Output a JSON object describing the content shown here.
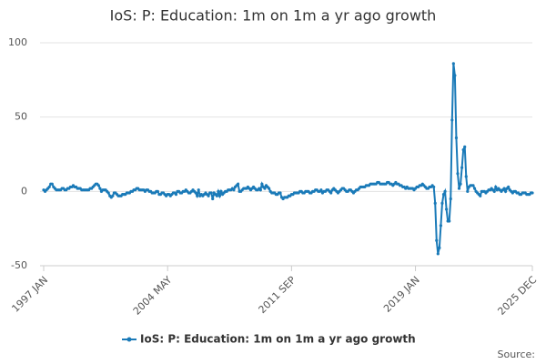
{
  "chart_data": {
    "type": "line",
    "title": "IoS: P: Education: 1m on 1m a yr ago growth",
    "source": "Source:",
    "categories": [
      "1997 JAN",
      null,
      null,
      null,
      null,
      null,
      null,
      null,
      null,
      null,
      null,
      null,
      null,
      null,
      null,
      null,
      null,
      null,
      null,
      null,
      null,
      null,
      null,
      null,
      null,
      null,
      null,
      null,
      null,
      null,
      null,
      null,
      null,
      null,
      null,
      null,
      null,
      null,
      null,
      null,
      null,
      null,
      null,
      null,
      null,
      null,
      null,
      null,
      null,
      null,
      null,
      null,
      null,
      null,
      null,
      null,
      null,
      null,
      null,
      null,
      null,
      null,
      null,
      null,
      null,
      null,
      null,
      null,
      null,
      null,
      null,
      null,
      null,
      null,
      null,
      null,
      null,
      null,
      null,
      null,
      null,
      null,
      null,
      null,
      null,
      null,
      null,
      null,
      "2004 MAY",
      null,
      null,
      null,
      null,
      null,
      null,
      null,
      null,
      null,
      null,
      null,
      null,
      null,
      null,
      null,
      null,
      null,
      null,
      null,
      null,
      null,
      null,
      null,
      null,
      null,
      null,
      null,
      null,
      null,
      null,
      null,
      null,
      null,
      null,
      null,
      null,
      null,
      null,
      null,
      null,
      null,
      null,
      null,
      null,
      null,
      null,
      null,
      null,
      null,
      null,
      null,
      null,
      null,
      null,
      null,
      null,
      null,
      null,
      null,
      null,
      null,
      null,
      null,
      null,
      null,
      null,
      null,
      null,
      null,
      null,
      null,
      null,
      null,
      null,
      null,
      null,
      null,
      null,
      null,
      null,
      null,
      null,
      null,
      null,
      null,
      null,
      null,
      "2011 SEP",
      null,
      null,
      null,
      null,
      null,
      null,
      null,
      null,
      null,
      null,
      null,
      null,
      null,
      null,
      null,
      null,
      null,
      null,
      null,
      null,
      null,
      null,
      null,
      null,
      null,
      null,
      null,
      null,
      null,
      null,
      null,
      null,
      null,
      null,
      null,
      null,
      null,
      null,
      null,
      null,
      null,
      null,
      null,
      null,
      null,
      null,
      null,
      null,
      null,
      null,
      null,
      null,
      null,
      null,
      null,
      null,
      null,
      null,
      null,
      null,
      null,
      null,
      null,
      null,
      null,
      null,
      null,
      null,
      null,
      null,
      null,
      null,
      null,
      null,
      null,
      null,
      null,
      null,
      null,
      null,
      null,
      null,
      null,
      null,
      null,
      null,
      null,
      "2019 JAN",
      null,
      null,
      null,
      null,
      null,
      null,
      null,
      null,
      null,
      null,
      null,
      null,
      null,
      null,
      null,
      null,
      null,
      null,
      null,
      null,
      null,
      null,
      null,
      null,
      null,
      null,
      null,
      null,
      null,
      null,
      null,
      null,
      null,
      null,
      null,
      null,
      null,
      null,
      null,
      null,
      null,
      null,
      null,
      null,
      null,
      null,
      null,
      null,
      null,
      null,
      null,
      null,
      null,
      null,
      null,
      null,
      null,
      null,
      null,
      null,
      null,
      null,
      null,
      null,
      null,
      null,
      null,
      null,
      null,
      null,
      null,
      null,
      null,
      null,
      null,
      null,
      null,
      null,
      null,
      null,
      null,
      null,
      "2025 DEC"
    ],
    "series": [
      {
        "name": "IoS: P: Education: 1m on 1m a yr ago growth",
        "color": "#1a7ab8",
        "values": [
          1,
          0,
          1,
          2,
          3,
          5,
          5,
          3,
          2,
          1,
          1,
          1,
          1,
          2,
          2,
          1,
          1,
          2,
          2,
          3,
          3,
          4,
          3,
          3,
          2,
          2,
          2,
          1,
          1,
          1,
          1,
          1,
          1,
          2,
          2,
          3,
          4,
          5,
          5,
          4,
          2,
          0,
          1,
          1,
          1,
          0,
          -1,
          -3,
          -4,
          -3,
          -1,
          -1,
          -2,
          -3,
          -3,
          -3,
          -2,
          -2,
          -2,
          -1,
          -1,
          -1,
          0,
          0,
          1,
          1,
          2,
          2,
          1,
          1,
          1,
          1,
          0,
          1,
          1,
          0,
          0,
          -1,
          -1,
          -1,
          0,
          0,
          -2,
          -2,
          -1,
          -1,
          -2,
          -3,
          -2,
          -2,
          -3,
          -2,
          -1,
          -1,
          -2,
          0,
          0,
          -1,
          -1,
          0,
          0,
          1,
          0,
          -1,
          -1,
          0,
          1,
          0,
          -1,
          -3,
          1,
          -3,
          -2,
          -3,
          -2,
          -1,
          -2,
          -3,
          -1,
          -1,
          -5,
          -1,
          -2,
          -3,
          0,
          -3,
          0,
          -2,
          -1,
          0,
          0,
          1,
          1,
          1,
          2,
          1,
          3,
          4,
          5,
          0,
          0,
          1,
          2,
          2,
          2,
          3,
          2,
          1,
          2,
          3,
          2,
          1,
          1,
          2,
          1,
          5,
          3,
          2,
          4,
          3,
          2,
          0,
          -1,
          -1,
          -1,
          -2,
          -2,
          -1,
          -1,
          -4,
          -5,
          -4,
          -4,
          -4,
          -3,
          -3,
          -2,
          -2,
          -1,
          -1,
          -1,
          -1,
          0,
          0,
          -1,
          -1,
          0,
          0,
          0,
          -1,
          -1,
          0,
          0,
          1,
          1,
          0,
          0,
          1,
          -1,
          0,
          0,
          1,
          1,
          0,
          -1,
          1,
          2,
          1,
          0,
          -1,
          0,
          1,
          2,
          2,
          1,
          0,
          0,
          1,
          1,
          0,
          -1,
          0,
          1,
          1,
          2,
          3,
          3,
          3,
          3,
          4,
          4,
          4,
          5,
          5,
          5,
          5,
          5,
          6,
          6,
          5,
          5,
          5,
          5,
          5,
          6,
          6,
          5,
          5,
          4,
          5,
          6,
          5,
          5,
          4,
          4,
          3,
          3,
          2,
          3,
          2,
          2,
          2,
          2,
          1,
          2,
          3,
          3,
          4,
          4,
          5,
          4,
          3,
          2,
          2,
          3,
          3,
          4,
          3,
          -8,
          -33,
          -42,
          -38,
          -23,
          -8,
          -2,
          0,
          -12,
          -20,
          -20,
          -5,
          48,
          86,
          78,
          36,
          12,
          2,
          5,
          16,
          28,
          30,
          10,
          0,
          3,
          4,
          4,
          4,
          2,
          0,
          -1,
          -2,
          -3,
          0,
          0,
          0,
          -1,
          0,
          1,
          1,
          2,
          1,
          0,
          3,
          1,
          2,
          1,
          0,
          1,
          2,
          0,
          2,
          3,
          1,
          0,
          -1,
          0,
          0,
          -1,
          -1,
          -2,
          -2,
          -1,
          -1,
          -1,
          -2,
          -2,
          -2,
          -1,
          -1
        ]
      }
    ],
    "ylim": [
      -50,
      100
    ],
    "yticks": [
      -50,
      0,
      50,
      100
    ],
    "grid": true,
    "legend": "bottom"
  }
}
